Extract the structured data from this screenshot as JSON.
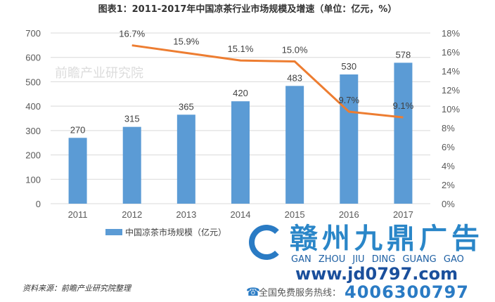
{
  "chart_data": {
    "type": "bar",
    "title": "图表1：2011-2017年中国凉茶行业市场规模及增速（单位：亿元，%）",
    "categories": [
      "2011",
      "2012",
      "2013",
      "2014",
      "2015",
      "2016",
      "2017"
    ],
    "series": [
      {
        "name": "中国凉茶市场规模（亿元）",
        "type": "bar",
        "axis": "left",
        "values": [
          270,
          315,
          365,
          420,
          483,
          530,
          578
        ],
        "labels": [
          "270",
          "315",
          "365",
          "420",
          "483",
          "530",
          "578"
        ],
        "color": "#5b9bd5"
      },
      {
        "type": "line",
        "axis": "right",
        "values": [
          null,
          16.7,
          15.9,
          15.1,
          15.0,
          9.7,
          9.1
        ],
        "labels": [
          "",
          "16.7%",
          "15.9%",
          "15.1%",
          "15.0%",
          "9.7%",
          "9.1%"
        ],
        "color": "#ed7d31"
      }
    ],
    "left_axis": {
      "ylim": [
        0,
        700
      ],
      "ticks": [
        "0",
        "100",
        "200",
        "300",
        "400",
        "500",
        "600",
        "700"
      ]
    },
    "right_axis": {
      "ylim": [
        0,
        18
      ],
      "ticks": [
        "0%",
        "2%",
        "4%",
        "6%",
        "8%",
        "10%",
        "12%",
        "14%",
        "16%",
        "18%"
      ]
    },
    "grid": true,
    "legend": "bottom"
  },
  "source": "资料来源：前瞻产业研究院整理",
  "watermark": "前瞻产业研究院",
  "ad": {
    "name": "赣州九鼎广告",
    "pinyin": "GAN ZHOU JIU DING GUANG GAO",
    "url": "www.jd0797.com",
    "phone_label": "全国免费服务热线：",
    "phone": "4006300797",
    "phone_icon": "phone-icon"
  }
}
